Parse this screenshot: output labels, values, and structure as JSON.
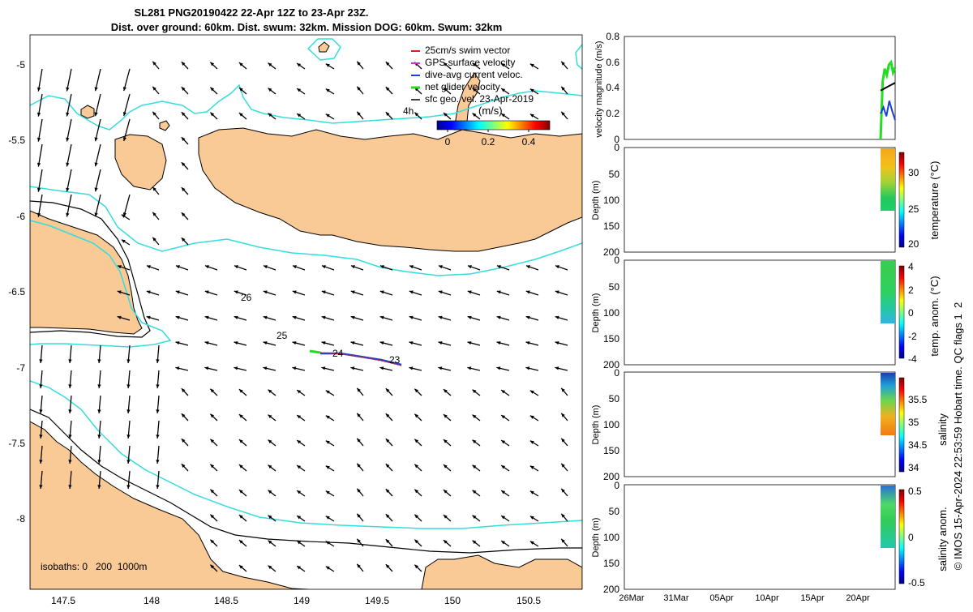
{
  "title": {
    "line1": "SL281 PNG20190422 22-Apr 12Z to 23-Apr 23Z.",
    "line2": "Dist. over ground: 60km. Dist. swum: 32km. Mission DOG: 60km. Swum: 32km"
  },
  "map": {
    "xticks": [
      "147.5",
      "148",
      "148.5",
      "149",
      "149.5",
      "150",
      "150.5"
    ],
    "yticks": [
      "-5",
      "-5.5",
      "-6",
      "-6.5",
      "-7",
      "-7.5",
      "-8"
    ],
    "legend": [
      {
        "label": "25cm/s swim vector",
        "color": "#e41a1c"
      },
      {
        "label": "GPS surface velocity",
        "color": "#cc33cc"
      },
      {
        "label": "dive-avg current veloc.",
        "color": "#1f3fd0"
      },
      {
        "label": "net glider velocity",
        "color": "#22dd22"
      },
      {
        "label": "sfc geo. vel. 23-Apr-2019",
        "color": "#000000"
      }
    ],
    "colorbar_title": "(m/s)",
    "colorbar_ticks": [
      "0",
      "0.2",
      "0.4"
    ],
    "annotations": {
      "hours": "4h",
      "d26": "26",
      "d25": "25",
      "d24": "24",
      "d23": "23"
    },
    "isobaths_label": "isobaths: 0   200  1000m"
  },
  "chart_data": [
    {
      "type": "line",
      "panel": "velocity",
      "ylabel": "velocity magnitude (m/s)",
      "yticks": [
        "0",
        "0.2",
        "0.4",
        "0.6",
        "0.8"
      ],
      "ylim": [
        0,
        0.8
      ],
      "series": [
        {
          "name": "net glider velocity",
          "color": "#22dd22",
          "values": [
            0.0,
            0.45,
            0.55,
            0.5,
            0.58,
            0.6,
            0.52,
            0.56
          ]
        },
        {
          "name": "dive-avg current veloc.",
          "color": "#1f3fd0",
          "values": [
            0.2,
            0.25,
            0.18,
            0.3,
            0.22,
            0.15
          ]
        },
        {
          "name": "sfc geo. vel.",
          "color": "#000000",
          "values": [
            0.38,
            0.4,
            0.42,
            0.44
          ]
        }
      ]
    },
    {
      "type": "heatmap",
      "panel": "temperature",
      "ylabel": "Depth (m)",
      "yticks": [
        "0",
        "50",
        "100",
        "150",
        "200"
      ],
      "colorbar_label": "temperature (°C)",
      "colorbar_ticks": [
        "30",
        "25",
        "20"
      ],
      "crange": [
        19,
        33
      ]
    },
    {
      "type": "heatmap",
      "panel": "temp_anom",
      "ylabel": "Depth (m)",
      "yticks": [
        "0",
        "50",
        "100",
        "150",
        "200"
      ],
      "colorbar_label": "temp. anom. (°C)",
      "colorbar_ticks": [
        "4",
        "2",
        "0",
        "-2",
        "-4"
      ],
      "crange": [
        -4,
        4
      ]
    },
    {
      "type": "heatmap",
      "panel": "salinity",
      "ylabel": "Depth (m)",
      "yticks": [
        "0",
        "50",
        "100",
        "150",
        "200"
      ],
      "colorbar_label": "salinity",
      "colorbar_ticks": [
        "35.5",
        "35",
        "34.5",
        "34"
      ],
      "crange": [
        33.9,
        35.8
      ]
    },
    {
      "type": "heatmap",
      "panel": "salinity_anom",
      "ylabel": "Depth (m)",
      "yticks": [
        "0",
        "50",
        "100",
        "150",
        "200"
      ],
      "xticks": [
        "26Mar",
        "31Mar",
        "05Apr",
        "10Apr",
        "15Apr",
        "20Apr"
      ],
      "colorbar_label": "salinity anom.",
      "colorbar_ticks": [
        "0.5",
        "0",
        "-0.5"
      ],
      "crange": [
        -0.5,
        0.5
      ]
    }
  ],
  "footer_note": "© IMOS 15-Apr-2024 22:53:59 Hobart time. QC flags 1  2",
  "colors": {
    "land": "#f9c996",
    "isobath200": "#33dddd",
    "isobath1000": "#000000"
  }
}
